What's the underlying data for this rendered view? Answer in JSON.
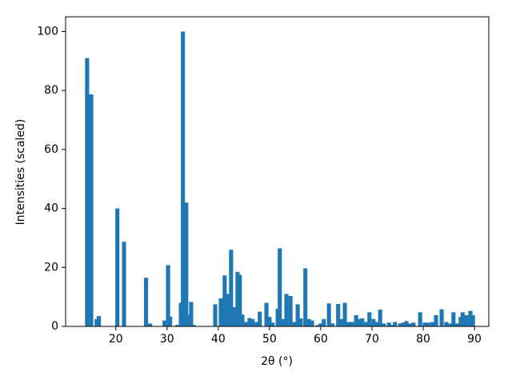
{
  "chart_data": {
    "type": "bar",
    "x_label": "2θ (°)",
    "y_label": "Intensities (scaled)",
    "color": "#1f77b4",
    "x": [
      14.4,
      15.2,
      16.25,
      16.7,
      20.3,
      21.6,
      25.9,
      26.7,
      29.5,
      30.2,
      30.6,
      32.0,
      32.7,
      33.1,
      33.75,
      34.2,
      34.7,
      35.2,
      39.4,
      40.5,
      41.25,
      41.9,
      42.5,
      43.1,
      43.75,
      44.2,
      44.7,
      45.5,
      46.1,
      46.7,
      47.5,
      48.1,
      49.4,
      50.0,
      50.6,
      51.6,
      52.0,
      52.7,
      53.3,
      54.1,
      54.8,
      55.5,
      56.1,
      57.0,
      57.7,
      58.3,
      59.4,
      60.0,
      60.6,
      61.6,
      62.3,
      63.4,
      64.1,
      64.7,
      65.5,
      66.25,
      66.9,
      67.5,
      68.1,
      68.9,
      69.5,
      70.3,
      70.9,
      71.6,
      72.3,
      73.3,
      73.9,
      74.5,
      75.5,
      76.1,
      76.7,
      77.3,
      78.1,
      79.4,
      80.3,
      81.1,
      81.9,
      82.5,
      83.6,
      84.5,
      85.3,
      85.9,
      86.6,
      87.3,
      87.7,
      88.4,
      89.2,
      89.7
    ],
    "values": [
      91,
      78.7,
      2.5,
      3.5,
      40,
      28.7,
      16.5,
      1,
      2,
      20.8,
      3.3,
      0.5,
      8,
      100,
      42,
      4,
      8.3,
      0.5,
      7.5,
      9.5,
      17.3,
      11,
      26,
      6.5,
      18.5,
      17.5,
      4,
      1.5,
      2.8,
      2.5,
      1.5,
      5,
      8,
      3.2,
      1.3,
      6,
      26.5,
      2.5,
      11,
      10.3,
      1.5,
      7.5,
      2.7,
      19.7,
      2.5,
      2,
      0.5,
      1,
      2.5,
      7.8,
      1,
      7.6,
      2.5,
      8,
      1.5,
      1.5,
      3.8,
      2.5,
      2.7,
      1.5,
      4.8,
      2.5,
      1.5,
      5.7,
      1,
      1.3,
      0.5,
      1.5,
      1,
      1.3,
      1.8,
      1,
      1.3,
      4.8,
      1.3,
      1.3,
      1.5,
      3.8,
      5.8,
      1.5,
      1,
      4.8,
      1,
      3.2,
      4.8,
      3.8,
      5.3,
      3.8
    ],
    "xlim": [
      10.2,
      92.8
    ],
    "xticks": [
      20,
      30,
      40,
      50,
      60,
      70,
      80,
      90
    ],
    "ylim": [
      0,
      105
    ],
    "yticks": [
      0,
      20,
      40,
      60,
      80,
      100
    ],
    "grid": false
  }
}
